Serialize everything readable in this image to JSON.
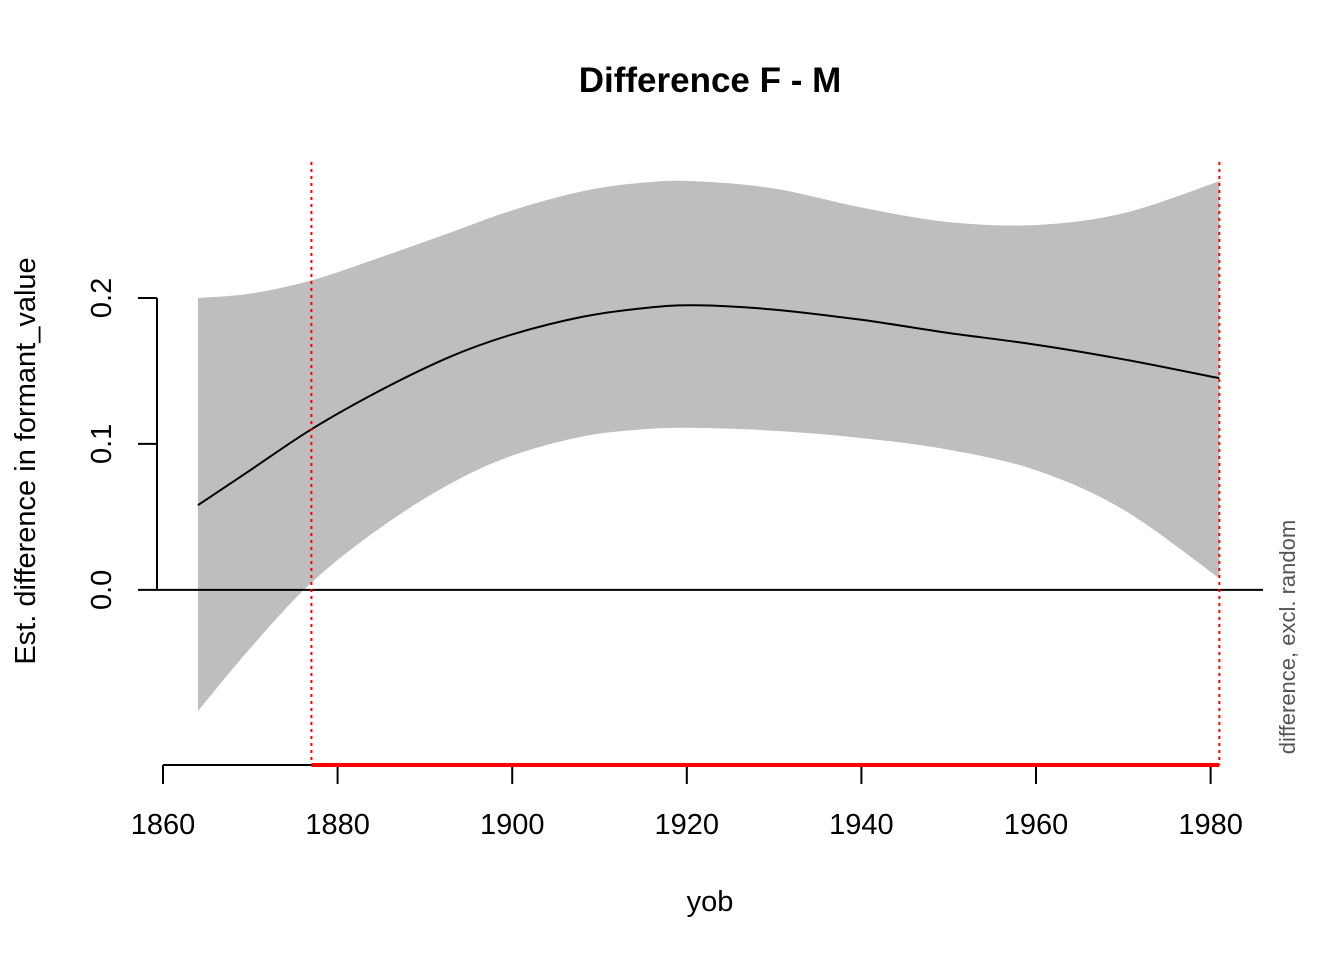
{
  "chart_data": {
    "type": "line",
    "title": "Difference F - M",
    "xlabel": "yob",
    "ylabel": "Est. difference in formant_value",
    "side_label": "difference, excl. random",
    "xlim": [
      1860,
      1986
    ],
    "ylim": [
      -0.12,
      0.3
    ],
    "x_ticks": [
      1860,
      1880,
      1900,
      1920,
      1940,
      1960,
      1980
    ],
    "y_ticks": [
      0.0,
      0.1,
      0.2
    ],
    "y_tick_labels": [
      "0.0",
      "0.1",
      "0.2"
    ],
    "grid": false,
    "series": [
      {
        "x": [
          1864,
          1870,
          1877,
          1885,
          1893,
          1900,
          1908,
          1915,
          1921,
          1930,
          1940,
          1950,
          1960,
          1970,
          1981
        ],
        "values": [
          0.058,
          0.082,
          0.11,
          0.137,
          0.16,
          0.175,
          0.187,
          0.193,
          0.195,
          0.192,
          0.185,
          0.176,
          0.168,
          0.158,
          0.145
        ],
        "lower": [
          -0.083,
          -0.04,
          0.005,
          0.043,
          0.073,
          0.092,
          0.105,
          0.11,
          0.111,
          0.109,
          0.104,
          0.096,
          0.082,
          0.055,
          0.008
        ],
        "upper": [
          0.2,
          0.203,
          0.212,
          0.228,
          0.245,
          0.26,
          0.273,
          0.279,
          0.28,
          0.275,
          0.262,
          0.252,
          0.25,
          0.258,
          0.28
        ],
        "line_color": "#000000",
        "band_color": "#bebebe"
      }
    ],
    "reference_line_y": 0.0,
    "significant_region": {
      "from": 1877,
      "to": 1981,
      "color": "#ff0000"
    },
    "vlines": [
      1877,
      1981
    ],
    "vline_color": "#ff0000"
  }
}
